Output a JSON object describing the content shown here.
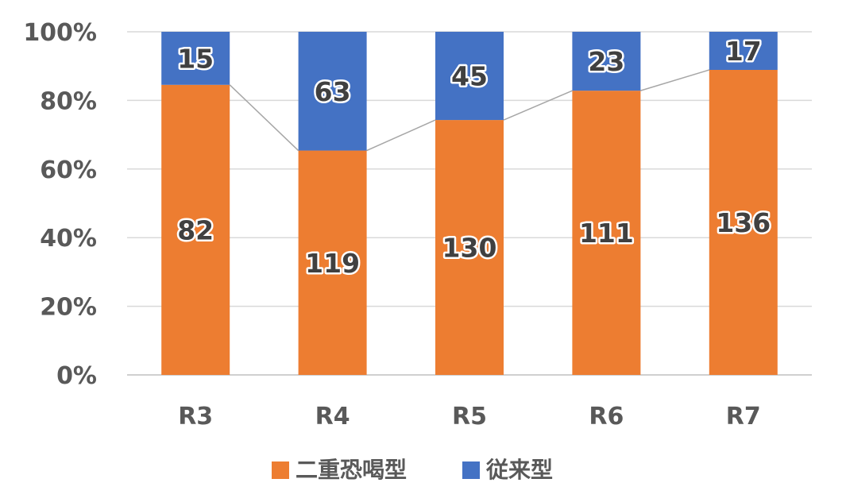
{
  "chart_data": {
    "type": "bar",
    "stacked": "percent",
    "categories": [
      "R3",
      "R4",
      "R5",
      "R6",
      "R7"
    ],
    "series": [
      {
        "name": "二重恐喝型",
        "color": "#ED7D31",
        "values": [
          82,
          119,
          130,
          111,
          136
        ]
      },
      {
        "name": "従来型",
        "color": "#4472C4",
        "values": [
          15,
          63,
          45,
          23,
          17
        ]
      }
    ],
    "y_ticks": [
      "0%",
      "20%",
      "40%",
      "60%",
      "80%",
      "100%"
    ],
    "ylim": [
      0,
      100
    ],
    "grid": true,
    "series_lines": true,
    "legend_position": "bottom",
    "title": "",
    "xlabel": "",
    "ylabel": ""
  },
  "colors": {
    "grid": "#d9d9d9",
    "axis": "#bfbfbf",
    "series_line": "#a6a6a6",
    "tick_text": "#595959"
  }
}
